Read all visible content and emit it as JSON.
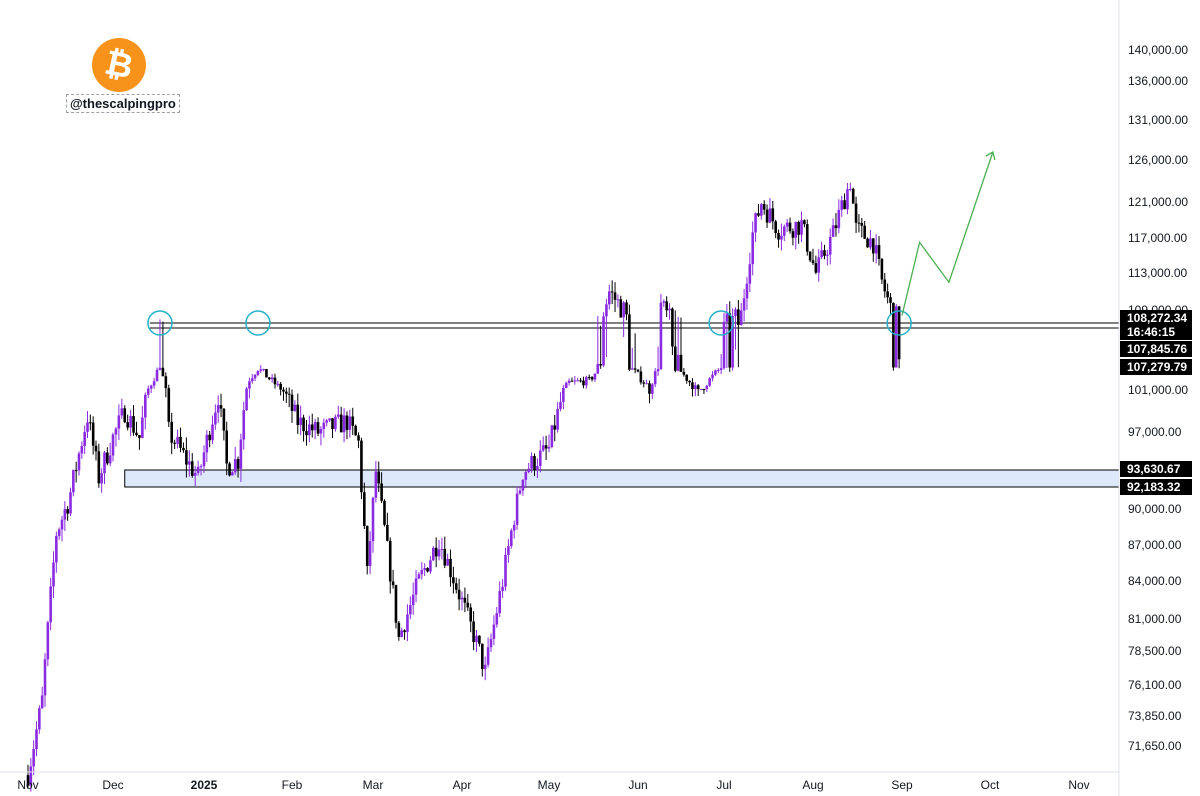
{
  "branding": {
    "logo_glyph": "₿",
    "logo_color": "#f7931a",
    "handle": "@thescalpingpro"
  },
  "colors": {
    "candle_up": "#8a2be2",
    "candle_down": "#000000",
    "zone_fill": "#dde8fb",
    "circle": "#26b0c9",
    "projection": "#4caf50",
    "tag_bg": "#000000"
  },
  "chart_data": {
    "type": "candlestick",
    "instrument_icon": "bitcoin-icon",
    "x_ticks": [
      "Nov",
      "Dec",
      "2025",
      "Feb",
      "Mar",
      "Apr",
      "May",
      "Jun",
      "Jul",
      "Aug",
      "Sep",
      "Oct",
      "Nov"
    ],
    "y_ticks": [
      "140,000.00",
      "136,000.00",
      "131,000.00",
      "126,000.00",
      "121,000.00",
      "117,000.00",
      "113,000.00",
      "109,000.00",
      "101,000.00",
      "97,000.00",
      "90,000.00",
      "87,000.00",
      "84,000.00",
      "81,000.00",
      "78,500.00",
      "76,100.00",
      "73,850.00",
      "71,650.00"
    ],
    "price_tags": [
      {
        "text": "108,272.34",
        "kind": "line"
      },
      {
        "text": "16:46:15",
        "kind": "countdown"
      },
      {
        "text": "107,845.76",
        "kind": "line"
      },
      {
        "text": "107,279.79",
        "kind": "line"
      },
      {
        "text": "93,630.67",
        "kind": "zone"
      },
      {
        "text": "92,183.32",
        "kind": "zone"
      }
    ],
    "horizontal_lines": [
      108272.34,
      107279.79
    ],
    "support_zone": {
      "top": 93630.67,
      "bottom": 92183.32,
      "from_date": "2024-12-05"
    },
    "circled_touches": [
      {
        "date": "2024-12-17",
        "price": 107500
      },
      {
        "date": "2025-01-20",
        "price": 107500
      },
      {
        "date": "2025-06-30",
        "price": 107500
      },
      {
        "date": "2025-08-31",
        "price": 108000
      }
    ],
    "projection_path": [
      {
        "date": "2025-09-01",
        "price": 108500
      },
      {
        "date": "2025-09-07",
        "price": 116500
      },
      {
        "date": "2025-09-17",
        "price": 112000
      },
      {
        "date": "2025-10-02",
        "price": 127000
      }
    ],
    "price_path": [
      [
        "2024-11-01",
        69500
      ],
      [
        "2024-11-06",
        75000
      ],
      [
        "2024-11-11",
        88000
      ],
      [
        "2024-11-15",
        90500
      ],
      [
        "2024-11-22",
        98500
      ],
      [
        "2024-11-26",
        93000
      ],
      [
        "2024-12-01",
        96500
      ],
      [
        "2024-12-05",
        99000
      ],
      [
        "2024-12-10",
        96500
      ],
      [
        "2024-12-16",
        106000
      ],
      [
        "2024-12-17",
        108000
      ],
      [
        "2024-12-20",
        97000
      ],
      [
        "2024-12-26",
        94500
      ],
      [
        "2024-12-30",
        93000
      ],
      [
        "2025-01-06",
        100500
      ],
      [
        "2025-01-09",
        94000
      ],
      [
        "2025-01-13",
        94500
      ],
      [
        "2025-01-17",
        104000
      ],
      [
        "2025-01-20",
        107000
      ],
      [
        "2025-01-27",
        102000
      ],
      [
        "2025-02-03",
        98000
      ],
      [
        "2025-02-10",
        97000
      ],
      [
        "2025-02-20",
        98000
      ],
      [
        "2025-02-24",
        96000
      ],
      [
        "2025-02-27",
        84500
      ],
      [
        "2025-03-02",
        93500
      ],
      [
        "2025-03-10",
        79500
      ],
      [
        "2025-03-17",
        84000
      ],
      [
        "2025-03-24",
        87500
      ],
      [
        "2025-03-31",
        83000
      ],
      [
        "2025-04-07",
        78500
      ],
      [
        "2025-04-09",
        77000
      ],
      [
        "2025-04-15",
        84000
      ],
      [
        "2025-04-22",
        93500
      ],
      [
        "2025-05-01",
        95500
      ],
      [
        "2025-05-08",
        103000
      ],
      [
        "2025-05-15",
        103500
      ],
      [
        "2025-05-22",
        111000
      ],
      [
        "2025-05-27",
        109000
      ],
      [
        "2025-06-01",
        105000
      ],
      [
        "2025-06-05",
        101500
      ],
      [
        "2025-06-09",
        109500
      ],
      [
        "2025-06-16",
        106000
      ],
      [
        "2025-06-22",
        100500
      ],
      [
        "2025-06-30",
        107200
      ],
      [
        "2025-07-07",
        108500
      ],
      [
        "2025-07-11",
        117500
      ],
      [
        "2025-07-14",
        121000
      ],
      [
        "2025-07-20",
        118000
      ],
      [
        "2025-07-28",
        118500
      ],
      [
        "2025-08-02",
        113000
      ],
      [
        "2025-08-08",
        117500
      ],
      [
        "2025-08-14",
        123500
      ],
      [
        "2025-08-16",
        118000
      ],
      [
        "2025-08-22",
        116500
      ],
      [
        "2025-08-25",
        112000
      ],
      [
        "2025-08-29",
        108300
      ],
      [
        "2025-08-31",
        108200
      ]
    ]
  }
}
